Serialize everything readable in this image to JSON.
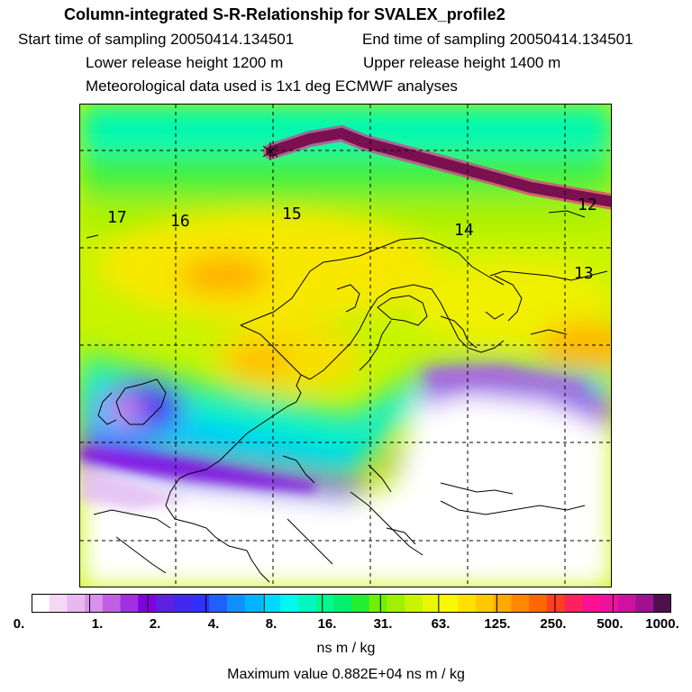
{
  "header": {
    "title": "Column-integrated S-R-Relationship for SVALEX_profile2",
    "start_time": "Start time of sampling 20050414.134501",
    "end_time": "End time of sampling 20050414.134501",
    "lower_height": "Lower release height 1200 m",
    "upper_height": "Upper release height 1400 m",
    "met_data": "Meteorological data used is 1x1 deg ECMWF analyses"
  },
  "map": {
    "day_labels": [
      "17",
      "16",
      "15",
      "14",
      "13",
      "12"
    ],
    "release_marker": "release-point-star",
    "trajectory_color": "#7a1050"
  },
  "colorbar": {
    "tick_labels": [
      "0.",
      "1.",
      "2.",
      "4.",
      "8.",
      "16.",
      "31.",
      "63.",
      "125.",
      "250.",
      "500.",
      "1000."
    ],
    "colors": [
      "#ffffff",
      "#f4d8f4",
      "#e8b8ee",
      "#d890e8",
      "#c060e4",
      "#a030e0",
      "#8000e0",
      "#6020e4",
      "#4028f0",
      "#3030ff",
      "#2060ff",
      "#1090ff",
      "#00b4ff",
      "#00d8ff",
      "#00f8f0",
      "#00f8c0",
      "#00f890",
      "#00f070",
      "#20f030",
      "#70f000",
      "#a0f000",
      "#c8f400",
      "#e8f800",
      "#f8f800",
      "#ffe000",
      "#ffc800",
      "#ffa800",
      "#ff8800",
      "#ff6800",
      "#ff4020",
      "#ff2060",
      "#ff1090",
      "#f010a0",
      "#d010a0",
      "#a01090",
      "#501050"
    ],
    "unit": "ns m / kg",
    "maximum": "Maximum value  0.882E+04 ns m / kg"
  }
}
